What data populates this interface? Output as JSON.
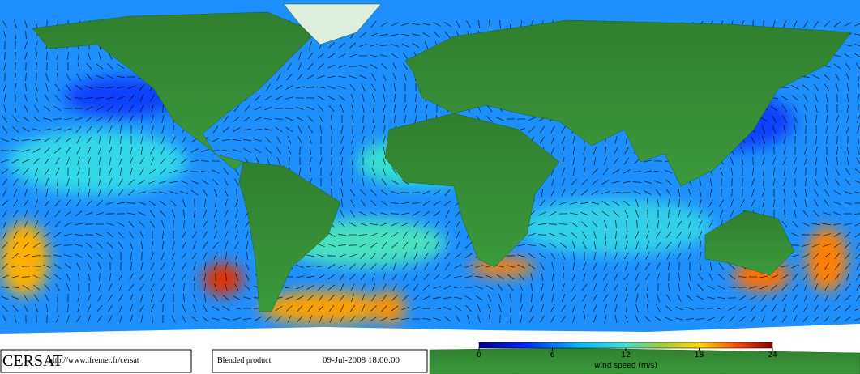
{
  "footer": {
    "logo": "CERSAT",
    "url": "http://www.ifremer.fr/cersat",
    "product": "Blended product",
    "timestamp": "09-Jul-2008 18:00:00"
  },
  "colorbar": {
    "label": "wind speed (m/s)",
    "lim": [
      0,
      24
    ],
    "ticks": [
      0,
      6,
      12,
      18,
      24
    ]
  }
}
